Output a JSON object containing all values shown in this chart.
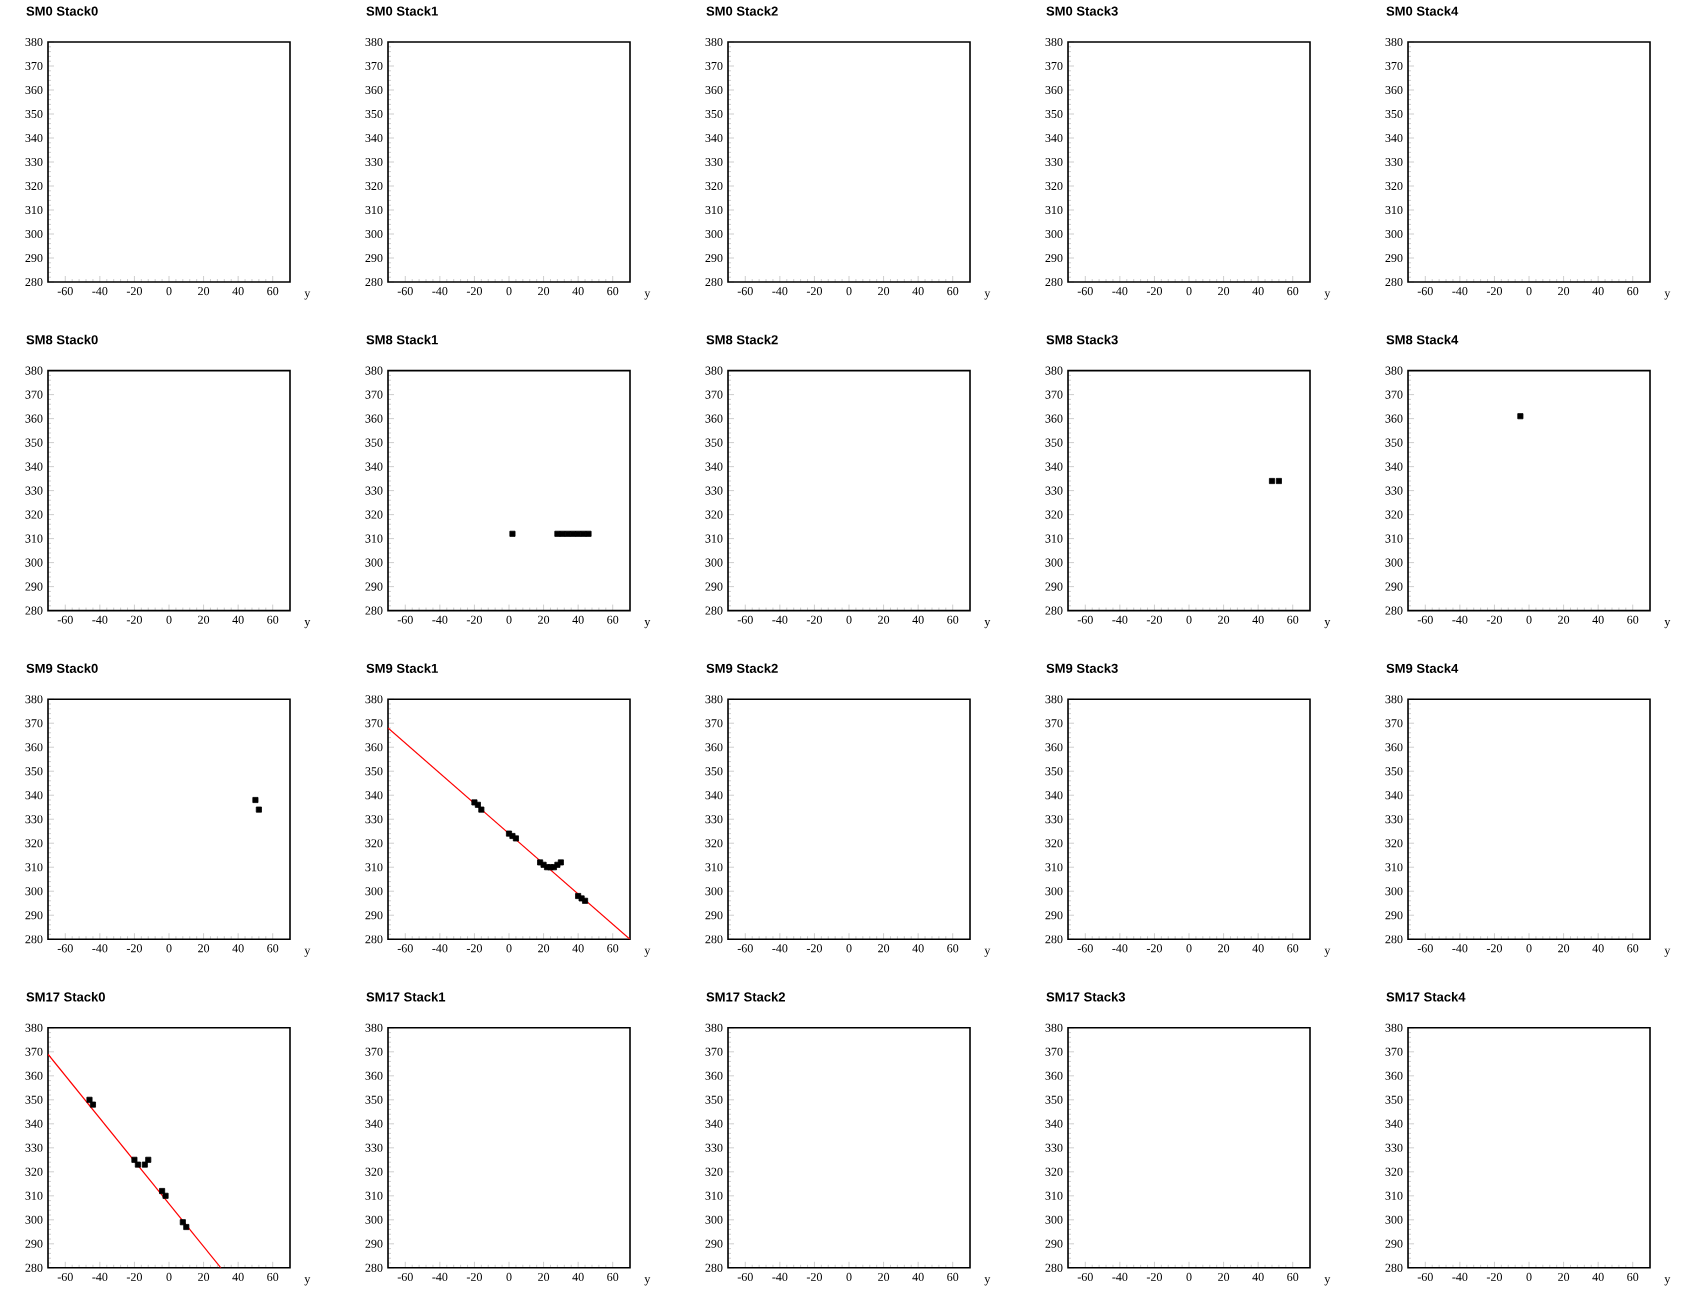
{
  "chart_data": [
    {
      "type": "scatter",
      "title": "SM0 Stack0",
      "xlabel": "y",
      "xlim": [
        -70,
        70
      ],
      "ylim": [
        280,
        380
      ],
      "xticks": [
        -60,
        -40,
        -20,
        0,
        20,
        40,
        60
      ],
      "yticks": [
        280,
        290,
        300,
        310,
        320,
        330,
        340,
        350,
        360,
        370,
        380
      ]
    },
    {
      "type": "scatter",
      "title": "SM0 Stack1",
      "xlabel": "y",
      "xlim": [
        -70,
        70
      ],
      "ylim": [
        280,
        380
      ],
      "xticks": [
        -60,
        -40,
        -20,
        0,
        20,
        40,
        60
      ],
      "yticks": [
        280,
        290,
        300,
        310,
        320,
        330,
        340,
        350,
        360,
        370,
        380
      ]
    },
    {
      "type": "scatter",
      "title": "SM0 Stack2",
      "xlabel": "y",
      "xlim": [
        -70,
        70
      ],
      "ylim": [
        280,
        380
      ],
      "xticks": [
        -60,
        -40,
        -20,
        0,
        20,
        40,
        60
      ],
      "yticks": [
        280,
        290,
        300,
        310,
        320,
        330,
        340,
        350,
        360,
        370,
        380
      ]
    },
    {
      "type": "scatter",
      "title": "SM0 Stack3",
      "xlabel": "y",
      "xlim": [
        -70,
        70
      ],
      "ylim": [
        280,
        380
      ],
      "xticks": [
        -60,
        -40,
        -20,
        0,
        20,
        40,
        60
      ],
      "yticks": [
        280,
        290,
        300,
        310,
        320,
        330,
        340,
        350,
        360,
        370,
        380
      ]
    },
    {
      "type": "scatter",
      "title": "SM0 Stack4",
      "xlabel": "y",
      "xlim": [
        -70,
        70
      ],
      "ylim": [
        280,
        380
      ],
      "xticks": [
        -60,
        -40,
        -20,
        0,
        20,
        40,
        60
      ],
      "yticks": [
        280,
        290,
        300,
        310,
        320,
        330,
        340,
        350,
        360,
        370,
        380
      ]
    },
    {
      "type": "scatter",
      "title": "SM8 Stack0",
      "xlabel": "y",
      "xlim": [
        -70,
        70
      ],
      "ylim": [
        280,
        380
      ],
      "xticks": [
        -60,
        -40,
        -20,
        0,
        20,
        40,
        60
      ],
      "yticks": [
        280,
        290,
        300,
        310,
        320,
        330,
        340,
        350,
        360,
        370,
        380
      ]
    },
    {
      "type": "scatter",
      "title": "SM8 Stack1",
      "xlabel": "y",
      "xlim": [
        -70,
        70
      ],
      "ylim": [
        280,
        380
      ],
      "xticks": [
        -60,
        -40,
        -20,
        0,
        20,
        40,
        60
      ],
      "yticks": [
        280,
        290,
        300,
        310,
        320,
        330,
        340,
        350,
        360,
        370,
        380
      ],
      "series": [
        {
          "color": "#000000",
          "marker": "square",
          "x": [
            2,
            28,
            31,
            34,
            37,
            40,
            43,
            46
          ],
          "values": [
            312,
            312,
            312,
            312,
            312,
            312,
            312,
            312
          ]
        }
      ]
    },
    {
      "type": "scatter",
      "title": "SM8 Stack2",
      "xlabel": "y",
      "xlim": [
        -70,
        70
      ],
      "ylim": [
        280,
        380
      ],
      "xticks": [
        -60,
        -40,
        -20,
        0,
        20,
        40,
        60
      ],
      "yticks": [
        280,
        290,
        300,
        310,
        320,
        330,
        340,
        350,
        360,
        370,
        380
      ]
    },
    {
      "type": "scatter",
      "title": "SM8 Stack3",
      "xlabel": "y",
      "xlim": [
        -70,
        70
      ],
      "ylim": [
        280,
        380
      ],
      "xticks": [
        -60,
        -40,
        -20,
        0,
        20,
        40,
        60
      ],
      "yticks": [
        280,
        290,
        300,
        310,
        320,
        330,
        340,
        350,
        360,
        370,
        380
      ],
      "series": [
        {
          "color": "#000000",
          "marker": "square",
          "x": [
            48,
            52
          ],
          "values": [
            334,
            334
          ]
        }
      ]
    },
    {
      "type": "scatter",
      "title": "SM8 Stack4",
      "xlabel": "y",
      "xlim": [
        -70,
        70
      ],
      "ylim": [
        280,
        380
      ],
      "xticks": [
        -60,
        -40,
        -20,
        0,
        20,
        40,
        60
      ],
      "yticks": [
        280,
        290,
        300,
        310,
        320,
        330,
        340,
        350,
        360,
        370,
        380
      ],
      "series": [
        {
          "color": "#000000",
          "marker": "square",
          "x": [
            -5
          ],
          "values": [
            361
          ]
        }
      ]
    },
    {
      "type": "scatter",
      "title": "SM9 Stack0",
      "xlabel": "y",
      "xlim": [
        -70,
        70
      ],
      "ylim": [
        280,
        380
      ],
      "xticks": [
        -60,
        -40,
        -20,
        0,
        20,
        40,
        60
      ],
      "yticks": [
        280,
        290,
        300,
        310,
        320,
        330,
        340,
        350,
        360,
        370,
        380
      ],
      "series": [
        {
          "color": "#000000",
          "marker": "square",
          "x": [
            50,
            52
          ],
          "values": [
            338,
            334
          ]
        }
      ]
    },
    {
      "type": "scatter",
      "title": "SM9 Stack1",
      "xlabel": "y",
      "xlim": [
        -70,
        70
      ],
      "ylim": [
        280,
        380
      ],
      "xticks": [
        -60,
        -40,
        -20,
        0,
        20,
        40,
        60
      ],
      "yticks": [
        280,
        290,
        300,
        310,
        320,
        330,
        340,
        350,
        360,
        370,
        380
      ],
      "series": [
        {
          "type": "line",
          "color": "#ff0000",
          "x": [
            -70,
            70
          ],
          "values": [
            368,
            280
          ]
        },
        {
          "color": "#000000",
          "marker": "square",
          "x": [
            -20,
            -18,
            -16,
            0,
            2,
            4,
            18,
            20,
            22,
            24,
            26,
            28,
            30,
            40,
            42,
            44
          ],
          "values": [
            337,
            336,
            334,
            324,
            323,
            322,
            312,
            311,
            310,
            310,
            310,
            311,
            312,
            298,
            297,
            296
          ]
        }
      ]
    },
    {
      "type": "scatter",
      "title": "SM9 Stack2",
      "xlabel": "y",
      "xlim": [
        -70,
        70
      ],
      "ylim": [
        280,
        380
      ],
      "xticks": [
        -60,
        -40,
        -20,
        0,
        20,
        40,
        60
      ],
      "yticks": [
        280,
        290,
        300,
        310,
        320,
        330,
        340,
        350,
        360,
        370,
        380
      ]
    },
    {
      "type": "scatter",
      "title": "SM9 Stack3",
      "xlabel": "y",
      "xlim": [
        -70,
        70
      ],
      "ylim": [
        280,
        380
      ],
      "xticks": [
        -60,
        -40,
        -20,
        0,
        20,
        40,
        60
      ],
      "yticks": [
        280,
        290,
        300,
        310,
        320,
        330,
        340,
        350,
        360,
        370,
        380
      ]
    },
    {
      "type": "scatter",
      "title": "SM9 Stack4",
      "xlabel": "y",
      "xlim": [
        -70,
        70
      ],
      "ylim": [
        280,
        380
      ],
      "xticks": [
        -60,
        -40,
        -20,
        0,
        20,
        40,
        60
      ],
      "yticks": [
        280,
        290,
        300,
        310,
        320,
        330,
        340,
        350,
        360,
        370,
        380
      ]
    },
    {
      "type": "scatter",
      "title": "SM17 Stack0",
      "xlabel": "y",
      "xlim": [
        -70,
        70
      ],
      "ylim": [
        280,
        380
      ],
      "xticks": [
        -60,
        -40,
        -20,
        0,
        20,
        40,
        60
      ],
      "yticks": [
        280,
        290,
        300,
        310,
        320,
        330,
        340,
        350,
        360,
        370,
        380
      ],
      "series": [
        {
          "type": "line",
          "color": "#ff0000",
          "x": [
            -70,
            30
          ],
          "values": [
            369,
            280
          ]
        },
        {
          "color": "#000000",
          "marker": "square",
          "x": [
            -46,
            -44,
            -20,
            -18,
            -14,
            -12,
            -4,
            -2,
            8,
            10
          ],
          "values": [
            350,
            348,
            325,
            323,
            323,
            325,
            312,
            310,
            299,
            297
          ]
        }
      ]
    },
    {
      "type": "scatter",
      "title": "SM17 Stack1",
      "xlabel": "y",
      "xlim": [
        -70,
        70
      ],
      "ylim": [
        280,
        380
      ],
      "xticks": [
        -60,
        -40,
        -20,
        0,
        20,
        40,
        60
      ],
      "yticks": [
        280,
        290,
        300,
        310,
        320,
        330,
        340,
        350,
        360,
        370,
        380
      ]
    },
    {
      "type": "scatter",
      "title": "SM17 Stack2",
      "xlabel": "y",
      "xlim": [
        -70,
        70
      ],
      "ylim": [
        280,
        380
      ],
      "xticks": [
        -60,
        -40,
        -20,
        0,
        20,
        40,
        60
      ],
      "yticks": [
        280,
        290,
        300,
        310,
        320,
        330,
        340,
        350,
        360,
        370,
        380
      ]
    },
    {
      "type": "scatter",
      "title": "SM17 Stack3",
      "xlabel": "y",
      "xlim": [
        -70,
        70
      ],
      "ylim": [
        280,
        380
      ],
      "xticks": [
        -60,
        -40,
        -20,
        0,
        20,
        40,
        60
      ],
      "yticks": [
        280,
        290,
        300,
        310,
        320,
        330,
        340,
        350,
        360,
        370,
        380
      ]
    },
    {
      "type": "scatter",
      "title": "SM17 Stack4",
      "xlabel": "y",
      "xlim": [
        -70,
        70
      ],
      "ylim": [
        280,
        380
      ],
      "xticks": [
        -60,
        -40,
        -20,
        0,
        20,
        40,
        60
      ],
      "yticks": [
        280,
        290,
        300,
        310,
        320,
        330,
        340,
        350,
        360,
        370,
        380
      ]
    }
  ]
}
